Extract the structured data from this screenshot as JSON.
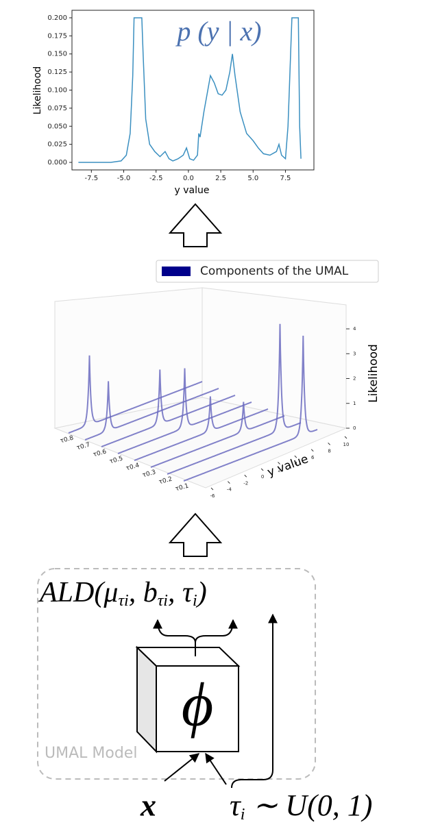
{
  "chart_data": [
    {
      "type": "line",
      "title": "p (y | x)",
      "xlabel": "y value",
      "ylabel": "Likelihood",
      "x": [
        -8.5,
        -6,
        -5.2,
        -4.8,
        -4.5,
        -4.3,
        -4.2,
        -3.6,
        -3.5,
        -3.3,
        -3,
        -2.6,
        -2.2,
        -1.8,
        -1.5,
        -1.2,
        -0.8,
        -0.4,
        -0.15,
        0.1,
        0.4,
        0.7,
        0.8,
        0.9,
        1.2,
        1.5,
        1.7,
        2.0,
        2.3,
        2.6,
        2.9,
        3.2,
        3.4,
        3.6,
        4.0,
        4.5,
        5.0,
        5.4,
        5.8,
        6.3,
        6.8,
        7.0,
        7.2,
        7.5,
        7.7,
        7.9,
        8.0,
        8.5,
        8.6,
        8.7
      ],
      "values": [
        0,
        0,
        0.002,
        0.01,
        0.04,
        0.12,
        0.2,
        0.2,
        0.15,
        0.06,
        0.025,
        0.015,
        0.008,
        0.015,
        0.005,
        0.002,
        0.005,
        0.01,
        0.02,
        0.005,
        0.003,
        0.01,
        0.04,
        0.035,
        0.07,
        0.1,
        0.12,
        0.11,
        0.095,
        0.093,
        0.1,
        0.125,
        0.15,
        0.12,
        0.07,
        0.04,
        0.03,
        0.02,
        0.012,
        0.01,
        0.015,
        0.025,
        0.01,
        0.005,
        0.05,
        0.15,
        0.2,
        0.2,
        0.05,
        0.005
      ],
      "color": "#3a8fc0",
      "title_color": "#4c72b0",
      "xlim": [
        -9.0,
        9.7
      ],
      "ylim": [
        -0.0104,
        0.2104
      ],
      "xticks": [
        {
          "value": -7.5,
          "label": "-7.5"
        },
        {
          "value": -5,
          "label": "-5.0"
        },
        {
          "value": -2.5,
          "label": "-2.5"
        },
        {
          "value": 0,
          "label": "0.0"
        },
        {
          "value": 2.5,
          "label": "2.5"
        },
        {
          "value": 5,
          "label": "5.0"
        },
        {
          "value": 7.5,
          "label": "7.5"
        }
      ],
      "yticks": [
        {
          "value": 0,
          "label": "0.000"
        },
        {
          "value": 0.025,
          "label": "0.025"
        },
        {
          "value": 0.05,
          "label": "0.050"
        },
        {
          "value": 0.075,
          "label": "0.075"
        },
        {
          "value": 0.1,
          "label": "0.100"
        },
        {
          "value": 0.125,
          "label": "0.125"
        },
        {
          "value": 0.15,
          "label": "0.150"
        },
        {
          "value": 0.175,
          "label": "0.175"
        },
        {
          "value": 0.2,
          "label": "0.200"
        }
      ]
    },
    {
      "type": "components3d",
      "legend": "Components of the UMAL",
      "color": "#6b6bc0",
      "legend_color": "#00008b",
      "xlabel": "y value",
      "zlabel": "Likelihood",
      "series": [
        {
          "name": "τ0.8",
          "peak": -3.5,
          "height": 2.8
        },
        {
          "name": "τ0.7",
          "peak": -3.2,
          "height": 2.0
        },
        {
          "name": "τ0.6",
          "peak": 1.0,
          "height": 2.2
        },
        {
          "name": "τ0.5",
          "peak": 2.0,
          "height": 2.4
        },
        {
          "name": "τ0.4",
          "peak": 3.1,
          "height": 1.4
        },
        {
          "name": "τ0.3",
          "peak": 5.1,
          "height": 1.2
        },
        {
          "name": "τ0.2",
          "peak": 7.5,
          "height": 4.3
        },
        {
          "name": "τ0.1",
          "peak": 8.3,
          "height": 4.0
        }
      ],
      "xlim": [
        -6,
        10
      ],
      "xticks": [
        -6,
        -4,
        -2,
        0,
        2,
        4,
        6,
        8,
        10
      ],
      "zlim": [
        0,
        4.6
      ],
      "zticks": [
        0,
        1,
        2,
        3,
        4
      ]
    }
  ],
  "model": {
    "distribution": "ALD",
    "open": "(",
    "sep": ", ",
    "close": ")",
    "params": [
      {
        "base": "μ",
        "sub": "τi"
      },
      {
        "base": "b",
        "sub": "τi"
      },
      {
        "base": "τ",
        "sub": "i"
      }
    ],
    "network": "ϕ",
    "box_label": "UMAL Model"
  },
  "inputs": {
    "x": "x",
    "tau": {
      "base": "τ",
      "sub": "i",
      "rest": " ∼ U(0, 1)"
    }
  }
}
